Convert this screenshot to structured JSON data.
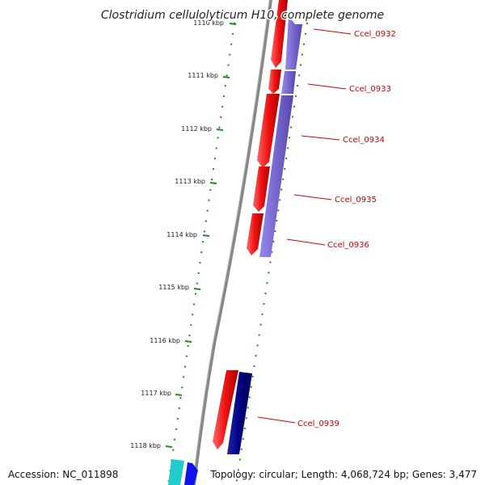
{
  "title": "Clostridium cellulolyticum H10, complete genome",
  "accession": "Accession: NC_011898",
  "summary": "Topology: circular; Length: 4,068,724 bp; Genes: 3,477",
  "ticks": [
    "1110 kbp",
    "1111 kbp",
    "1112 kbp",
    "1113 kbp",
    "1114 kbp",
    "1115 kbp",
    "1116 kbp",
    "1117 kbp",
    "1118 kbp"
  ],
  "gene_labels": [
    "Ccel_0932",
    "Ccel_0933",
    "Ccel_0934",
    "Ccel_0935",
    "Ccel_0936",
    "Ccel_0939"
  ],
  "colors": {
    "backbone": "#888888",
    "forward_gene": "#ee1111",
    "reverse_gene": "#7766cc",
    "reverse_gene_dark": "#000080",
    "tick": "#228822",
    "label": "#cc0000",
    "cyan_gene": "#22cccc",
    "blue_gene": "#1111ee"
  }
}
